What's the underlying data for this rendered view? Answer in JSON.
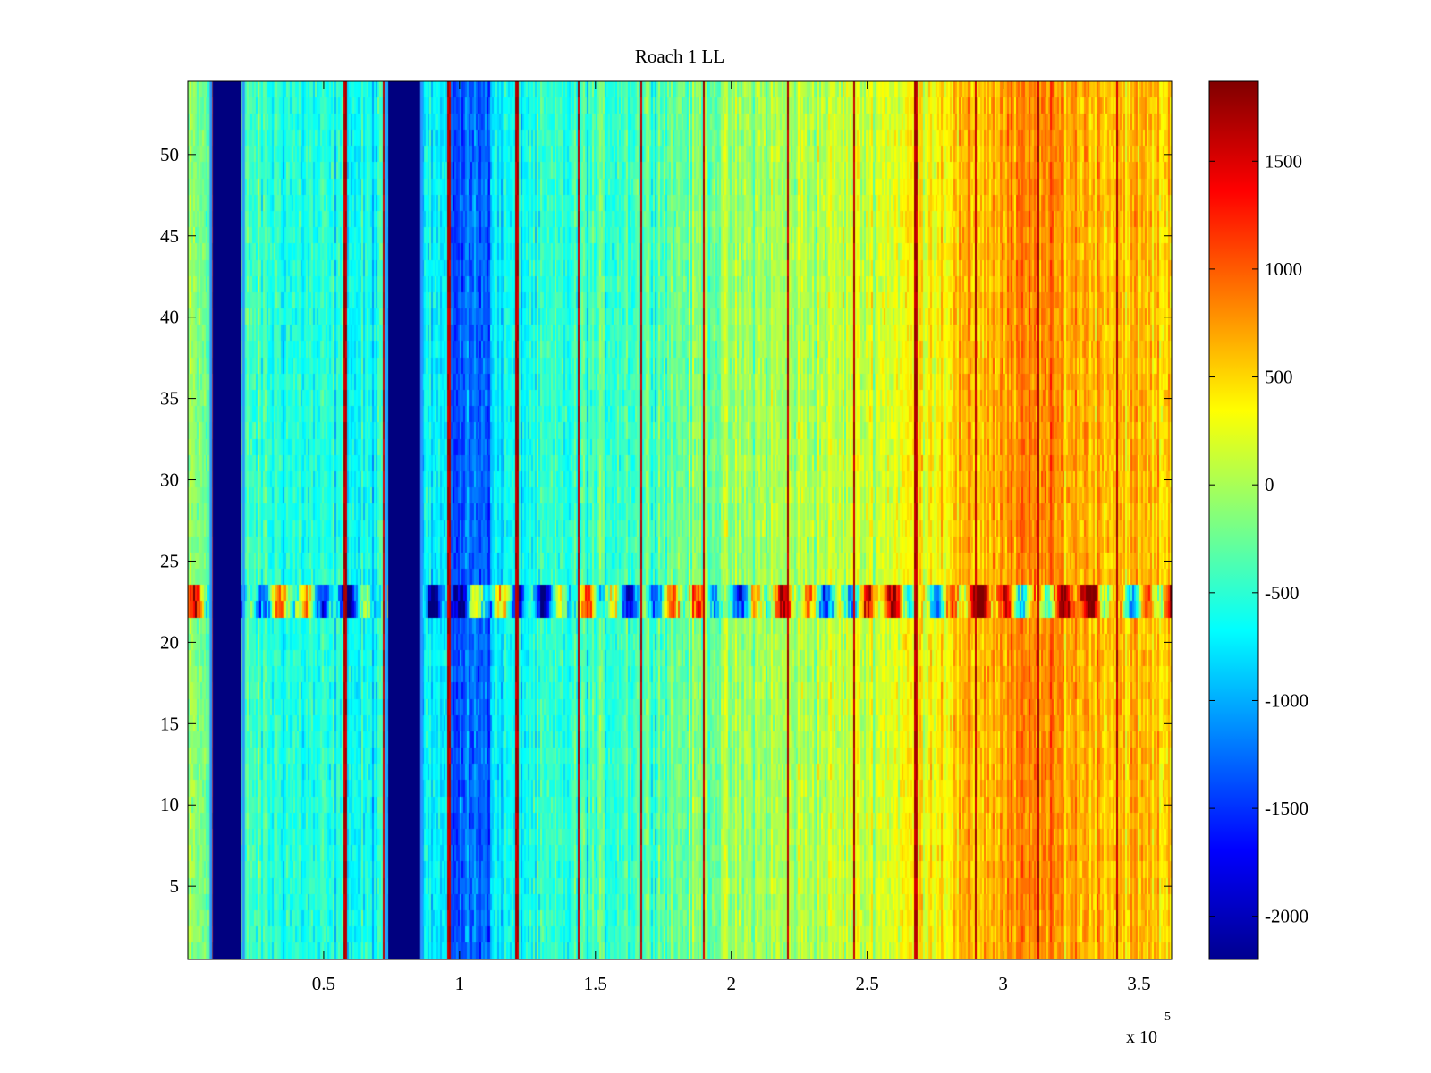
{
  "chart_data": {
    "type": "heatmap",
    "title": "Roach 1 LL",
    "xlabel": "",
    "ylabel": "",
    "x_multiplier_label": "x 10",
    "x_multiplier_exponent": "5",
    "xlim": [
      0.0,
      3.62
    ],
    "ylim": [
      0.5,
      54.5
    ],
    "xticks": [
      0.5,
      1,
      1.5,
      2,
      2.5,
      3,
      3.5
    ],
    "xtick_labels": [
      "0.5",
      "1",
      "1.5",
      "2",
      "2.5",
      "3",
      "3.5"
    ],
    "yticks": [
      5,
      10,
      15,
      20,
      25,
      30,
      35,
      40,
      45,
      50
    ],
    "ytick_labels": [
      "5",
      "10",
      "15",
      "20",
      "25",
      "30",
      "35",
      "40",
      "45",
      "50"
    ],
    "rows": 54,
    "colorbar": {
      "colormap": "jet",
      "clim": [
        -2200,
        1870
      ],
      "ticks": [
        -2000,
        -1500,
        -1000,
        -500,
        0,
        500,
        1000,
        1500
      ],
      "tick_labels": [
        "-2000",
        "-1500",
        "-1000",
        "-500",
        "0",
        "500",
        "1000",
        "1500"
      ]
    },
    "trend_knots": {
      "x": [
        0.0,
        0.3,
        0.6,
        0.9,
        1.0,
        1.2,
        1.5,
        2.0,
        2.5,
        2.9,
        3.1,
        3.3,
        3.62
      ],
      "value": [
        -150,
        -500,
        -650,
        -700,
        -900,
        -650,
        -450,
        -100,
        150,
        600,
        800,
        700,
        500
      ]
    },
    "dropout_bands": [
      {
        "x_start": 0.09,
        "x_end": 0.2,
        "value": -2200
      },
      {
        "x_start": 0.735,
        "x_end": 0.855,
        "value": -2200
      }
    ],
    "spike_lines": [
      0.09,
      0.58,
      0.72,
      0.96,
      1.21,
      1.44,
      1.67,
      1.9,
      2.21,
      2.45,
      2.68,
      2.9,
      3.13,
      3.42
    ],
    "anomaly_band": {
      "y_start": 21.5,
      "y_end": 23.5,
      "amplitude": 1500
    }
  }
}
